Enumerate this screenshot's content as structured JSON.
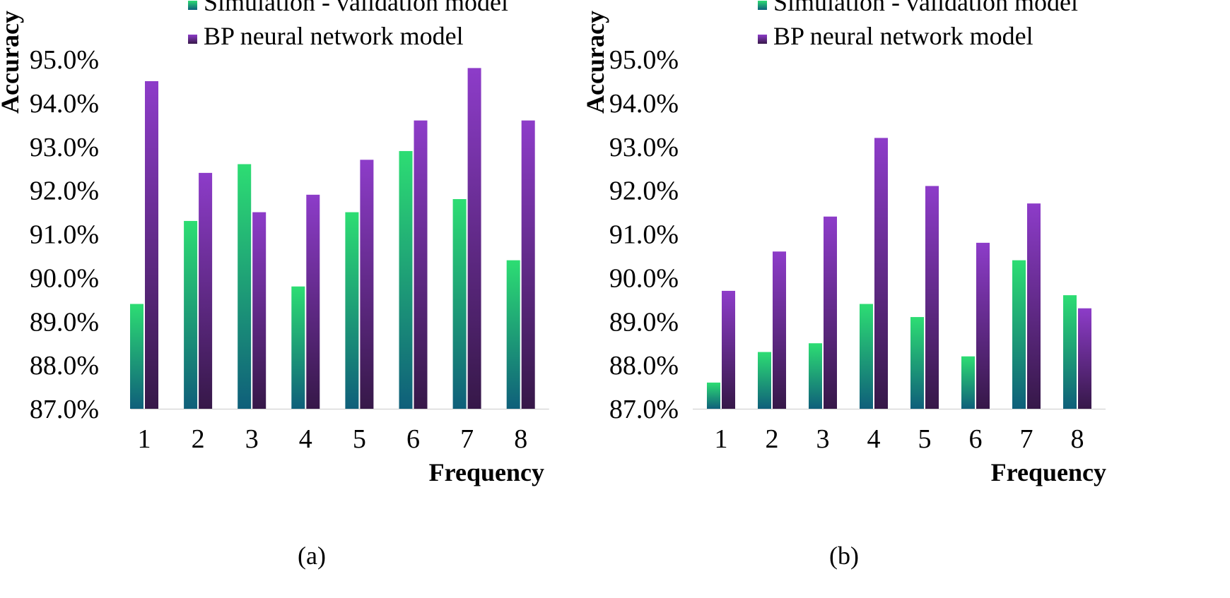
{
  "colors": {
    "sim_top": "#2ddd73",
    "sim_bottom": "#0f5f7a",
    "bp_top": "#8d3cc9",
    "bp_bottom": "#361848"
  },
  "chart_data": [
    {
      "type": "bar",
      "panel_label": "(a)",
      "xlabel": "Frequency",
      "ylabel": "Accuracy",
      "categories": [
        "1",
        "2",
        "3",
        "4",
        "5",
        "6",
        "7",
        "8"
      ],
      "ylim": [
        87.0,
        95.0
      ],
      "yticks": [
        87.0,
        88.0,
        89.0,
        90.0,
        91.0,
        92.0,
        93.0,
        94.0,
        95.0
      ],
      "ytick_labels": [
        "87.0%",
        "88.0%",
        "89.0%",
        "90.0%",
        "91.0%",
        "92.0%",
        "93.0%",
        "94.0%",
        "95.0%"
      ],
      "grid": false,
      "legend_position": "top",
      "series": [
        {
          "name": "Simulation - validation model",
          "values": [
            89.4,
            91.3,
            92.6,
            89.8,
            91.5,
            92.9,
            91.8,
            90.4
          ]
        },
        {
          "name": "BP neural network model",
          "values": [
            94.5,
            92.4,
            91.5,
            91.9,
            92.7,
            93.6,
            94.8,
            93.6
          ]
        }
      ]
    },
    {
      "type": "bar",
      "panel_label": "(b)",
      "xlabel": "Frequency",
      "ylabel": "Accuracy",
      "categories": [
        "1",
        "2",
        "3",
        "4",
        "5",
        "6",
        "7",
        "8"
      ],
      "ylim": [
        87.0,
        95.0
      ],
      "yticks": [
        87.0,
        88.0,
        89.0,
        90.0,
        91.0,
        92.0,
        93.0,
        94.0,
        95.0
      ],
      "ytick_labels": [
        "87.0%",
        "88.0%",
        "89.0%",
        "90.0%",
        "91.0%",
        "92.0%",
        "93.0%",
        "94.0%",
        "95.0%"
      ],
      "grid": false,
      "legend_position": "top",
      "series": [
        {
          "name": "Simulation - validation model",
          "values": [
            87.6,
            88.3,
            88.5,
            89.4,
            89.1,
            88.2,
            90.4,
            89.6
          ]
        },
        {
          "name": "BP neural network model",
          "values": [
            89.7,
            90.6,
            91.4,
            93.2,
            92.1,
            90.8,
            91.7,
            89.3
          ]
        }
      ]
    }
  ]
}
